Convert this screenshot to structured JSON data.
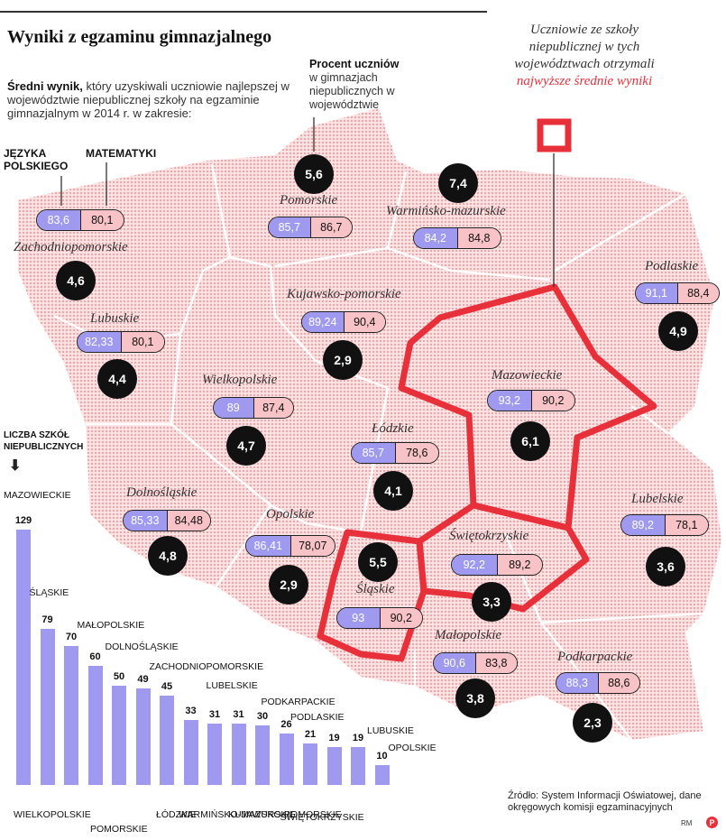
{
  "title": "Wyniki z egzaminu gimnazjalnego",
  "intro": {
    "bold": "Średni wynik,",
    "text": "który uzyskiwali uczniowie najlepszej w województwie niepublicznej szkoły na egzaminie gimnazjalnym w 2014 r. w zakresie:"
  },
  "legend": {
    "polski": "JĘZYKA POLSKIEGO",
    "matematyka": "MATEMATYKI"
  },
  "procent": {
    "bold": "Procent uczniów",
    "text": "w gimnazjach niepublicznych w województwie"
  },
  "annotation": {
    "text": "Uczniowie ze szkoły niepublicznej w tych województwach otrzymali",
    "highlight": "najwyższe średnie wyniki"
  },
  "bars_title": "LICZBA SZKÓŁ NIEPUBLICZNYCH",
  "colors": {
    "polish": "#9f9af0",
    "math": "#f7c3c6",
    "highlight": "#e8303a",
    "map": "#f5c4c6"
  },
  "chart_data": [
    {
      "type": "table",
      "columns": [
        "region",
        "polski",
        "matematyka",
        "procent_uczniow"
      ],
      "rows": [
        [
          "Zachodniopomorskie",
          "83,6",
          "80,1",
          "4,6"
        ],
        [
          "Pomorskie",
          "85,7",
          "86,7",
          "5,6"
        ],
        [
          "Warmińsko-mazurskie",
          "84,2",
          "84,8",
          "7,4"
        ],
        [
          "Podlaskie",
          "91,1",
          "88,4",
          "4,9"
        ],
        [
          "Kujawsko-pomorskie",
          "89,24",
          "90,4",
          "2,9"
        ],
        [
          "Lubuskie",
          "82,33",
          "80,1",
          "4,4"
        ],
        [
          "Wielkopolskie",
          "89",
          "87,4",
          "4,7"
        ],
        [
          "Mazowieckie",
          "93,2",
          "90,2",
          "6,1"
        ],
        [
          "Łódzkie",
          "85,7",
          "78,6",
          "4,1"
        ],
        [
          "Dolnośląskie",
          "85,33",
          "84,48",
          "4,8"
        ],
        [
          "Opolskie",
          "86,41",
          "78,07",
          "2,9"
        ],
        [
          "Lubelskie",
          "89,2",
          "78,1",
          "3,6"
        ],
        [
          "Świętokrzyskie",
          "92,2",
          "89,2",
          "3,3"
        ],
        [
          "Śląskie",
          "93",
          "90,2",
          "5,5"
        ],
        [
          "Małopolskie",
          "90,6",
          "83,8",
          "3,8"
        ],
        [
          "Podkarpackie",
          "88,3",
          "88,6",
          "2,3"
        ]
      ],
      "highlighted": [
        "Mazowieckie",
        "Świętokrzyskie",
        "Śląskie"
      ]
    },
    {
      "type": "bar",
      "title": "LICZBA SZKÓŁ NIEPUBLICZNYCH",
      "categories": [
        "MAZOWIECKIE",
        "ŚLĄSKIE",
        "WIELKOPOLSKIE",
        "MAŁOPOLSKIE",
        "POMORSKIE",
        "DOLNOŚLĄSKIE",
        "ŁÓDZKIE",
        "ZACHODNIOPOMORSKIE",
        "WARMIŃSKO-MAZURSKIE",
        "LUBELSKIE",
        "KUJAWSKO-POMORSKIE",
        "PODKARPACKIE",
        "PODLASKIE",
        "ŚWIĘTOKRZYSKIE",
        "LUBUSKIE",
        "OPOLSKIE"
      ],
      "values": [
        129,
        79,
        70,
        60,
        50,
        49,
        45,
        33,
        31,
        31,
        30,
        26,
        21,
        19,
        19,
        10
      ],
      "ylim": [
        0,
        129
      ]
    }
  ],
  "source": "Źródło: System Informacji Oświatowej, dane okręgowych komisji egzaminacyjnych",
  "credit": "RM",
  "logo": "P"
}
